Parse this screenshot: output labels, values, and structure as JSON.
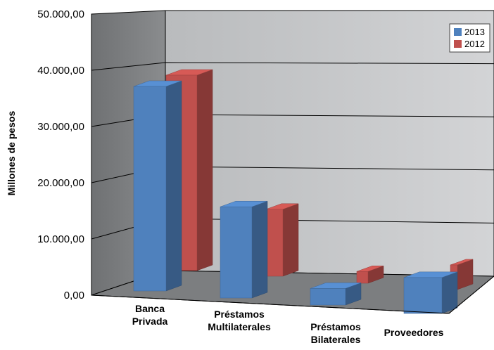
{
  "chart_data": {
    "type": "bar",
    "title": "",
    "xlabel": "",
    "ylabel": "Millones de pesos",
    "ylim": [
      0,
      50000
    ],
    "yticks": [
      "0,00",
      "10.000,00",
      "20.000,00",
      "30.000,00",
      "40.000,00",
      "50.000,00"
    ],
    "categories": [
      [
        "Banca",
        "Privada"
      ],
      [
        "Préstamos",
        "Multilaterales"
      ],
      [
        "Préstamos",
        "Bilaterales"
      ],
      [
        "Proveedores"
      ]
    ],
    "series": [
      {
        "name": "2013",
        "color": "#4f81bd",
        "values": [
          37000,
          16500,
          3000,
          6500
        ]
      },
      {
        "name": "2012",
        "color": "#c0504d",
        "values": [
          36500,
          12500,
          2200,
          4600
        ]
      }
    ],
    "grid": true,
    "legend": "top-right",
    "style": "3d-clustered-column"
  }
}
